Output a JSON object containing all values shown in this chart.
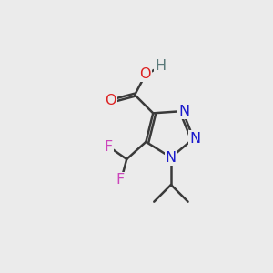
{
  "background_color": "#ebebeb",
  "bond_color": "#3a3a3a",
  "bond_width": 1.8,
  "atom_colors": {
    "N": "#1a1acc",
    "O": "#dd2020",
    "H": "#5a7a7a",
    "F": "#cc44bb",
    "C": "#3a3a3a"
  },
  "font_size_atom": 11.5,
  "figsize": [
    3.0,
    3.0
  ],
  "dpi": 100
}
